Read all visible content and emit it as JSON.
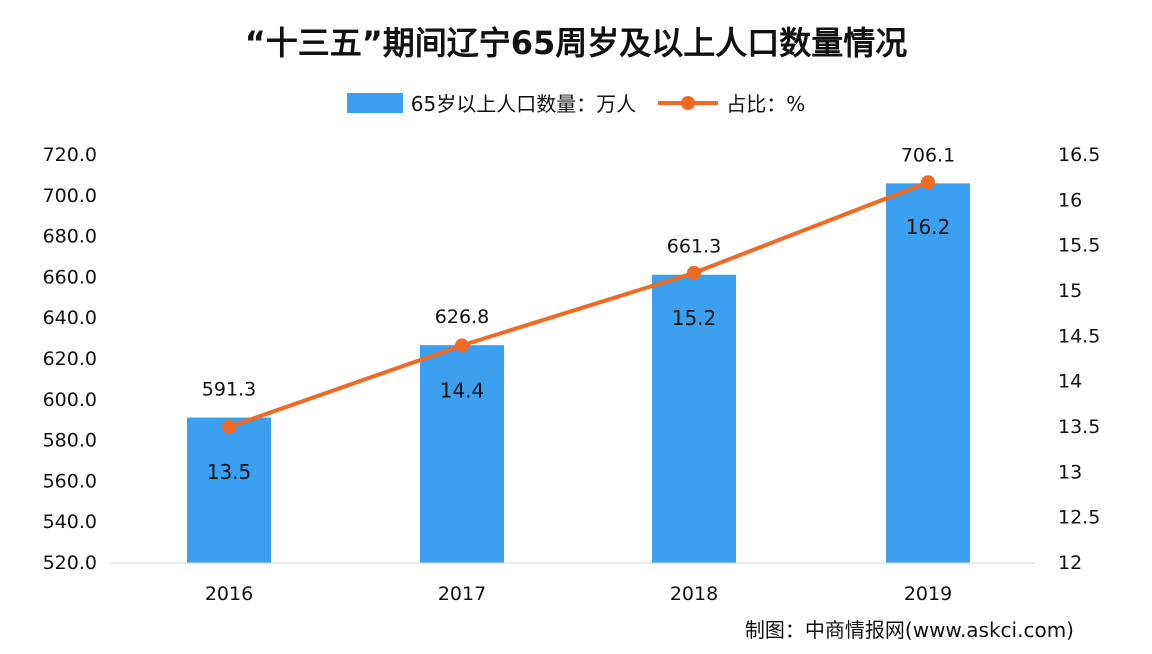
{
  "title": "“十三五”期间辽宁65周岁及以上人口数量情况",
  "source": "制图：中商情报网(www.askci.com)",
  "colors": {
    "bar": "#3ba0f0",
    "line": "#ef6a22",
    "text": "#111111"
  },
  "chart_data": {
    "type": "bar",
    "categories": [
      "2016",
      "2017",
      "2018",
      "2019"
    ],
    "series": [
      {
        "name": "65岁以上人口数量：万人",
        "type": "bar",
        "axis": "left",
        "values": [
          591.3,
          626.8,
          661.3,
          706.1
        ],
        "labels": [
          "591.3",
          "626.8",
          "661.3",
          "706.1"
        ]
      },
      {
        "name": "占比：%",
        "type": "line",
        "axis": "right",
        "values": [
          13.5,
          14.4,
          15.2,
          16.2
        ],
        "labels": [
          "13.5",
          "14.4",
          "15.2",
          "16.2"
        ]
      }
    ],
    "y_left": {
      "min": 520,
      "max": 720,
      "ticks": [
        "720.0",
        "700.0",
        "680.0",
        "660.0",
        "640.0",
        "620.0",
        "600.0",
        "580.0",
        "560.0",
        "540.0",
        "520.0"
      ]
    },
    "y_right": {
      "min": 12,
      "max": 16.5,
      "ticks": [
        "16.5",
        "16",
        "15.5",
        "15",
        "14.5",
        "14",
        "13.5",
        "13",
        "12.5",
        "12"
      ]
    },
    "grid": false,
    "legend_position": "top"
  }
}
